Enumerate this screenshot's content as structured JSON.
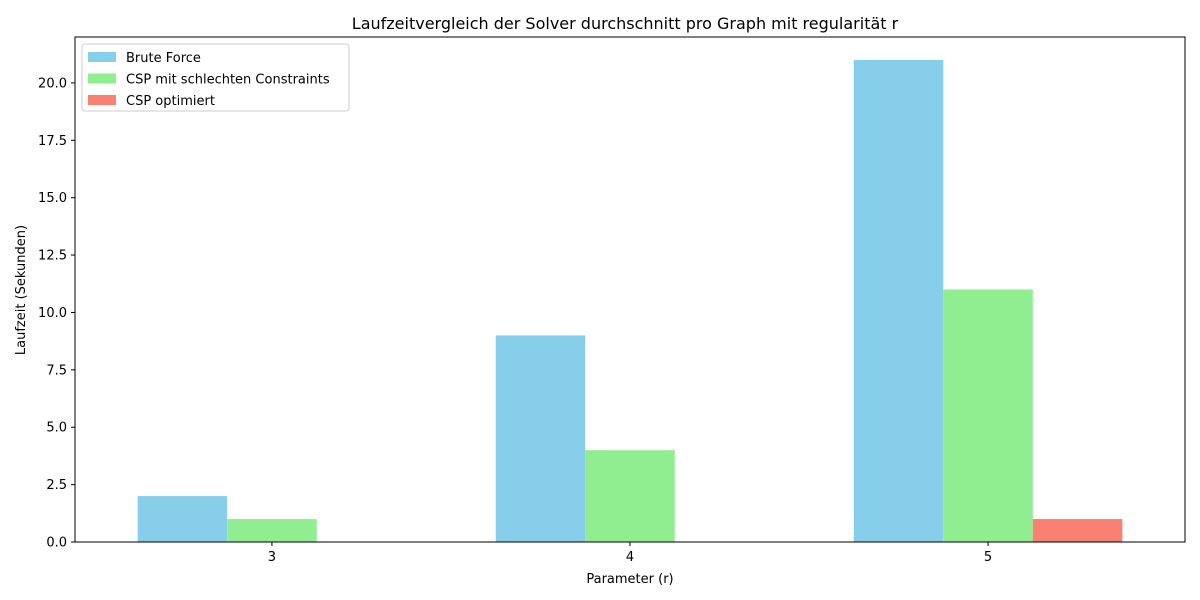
{
  "chart_data": {
    "type": "bar",
    "title": "Laufzeitvergleich der Solver durchschnitt pro Graph mit regularität r",
    "xlabel": "Parameter (r)",
    "ylabel": "Laufzeit (Sekunden)",
    "categories": [
      "3",
      "4",
      "5"
    ],
    "ylim": [
      0,
      22
    ],
    "yticks": [
      "0.0",
      "2.5",
      "5.0",
      "7.5",
      "10.0",
      "12.5",
      "15.0",
      "17.5",
      "20.0"
    ],
    "ytick_values": [
      0,
      2.5,
      5,
      7.5,
      10,
      12.5,
      15,
      17.5,
      20
    ],
    "grid": false,
    "legend_position": "top-left",
    "series": [
      {
        "name": "Brute Force",
        "values": [
          2,
          9,
          21
        ],
        "color": "#87CEEB"
      },
      {
        "name": "CSP mit schlechten Constraints",
        "values": [
          1,
          4,
          11
        ],
        "color": "#90EE90"
      },
      {
        "name": "CSP optimiert",
        "values": [
          0,
          0,
          1
        ],
        "color": "#FA8072"
      }
    ]
  }
}
